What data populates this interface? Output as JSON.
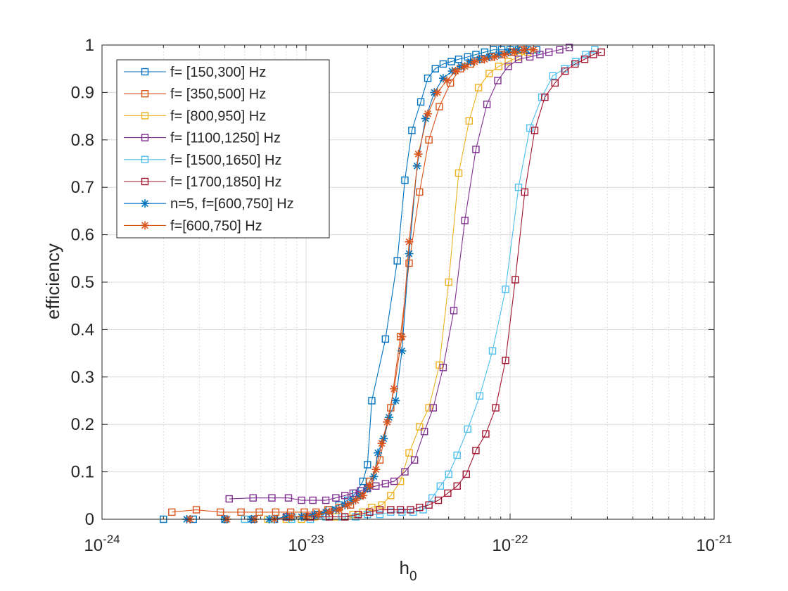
{
  "chart_data": {
    "type": "line",
    "title": "",
    "xlabel_base": "h",
    "xlabel_sub": "0",
    "ylabel": "efficiency",
    "xscale": "log",
    "xlim": [
      1e-24,
      1e-21
    ],
    "ylim": [
      0,
      1
    ],
    "grid": true,
    "legend_location": "top-left",
    "x_ticks": [
      {
        "base": "10",
        "exp": "-24",
        "value": 1e-24
      },
      {
        "base": "10",
        "exp": "-23",
        "value": 1e-23
      },
      {
        "base": "10",
        "exp": "-22",
        "value": 1e-22
      },
      {
        "base": "10",
        "exp": "-21",
        "value": 1e-21
      }
    ],
    "y_ticks": [
      {
        "label": "0",
        "value": 0
      },
      {
        "label": "0.1",
        "value": 0.1
      },
      {
        "label": "0.2",
        "value": 0.2
      },
      {
        "label": "0.3",
        "value": 0.3
      },
      {
        "label": "0.4",
        "value": 0.4
      },
      {
        "label": "0.5",
        "value": 0.5
      },
      {
        "label": "0.6",
        "value": 0.6
      },
      {
        "label": "0.7",
        "value": 0.7
      },
      {
        "label": "0.8",
        "value": 0.8
      },
      {
        "label": "0.9",
        "value": 0.9
      },
      {
        "label": "1",
        "value": 1
      }
    ],
    "series": [
      {
        "name": "f= [150,300] Hz",
        "color": "#0072BD",
        "marker": "square",
        "x": [
          2e-24,
          2.8e-24,
          4e-24,
          5.5e-24,
          7e-24,
          8.5e-24,
          1e-23,
          1.15e-23,
          1.3e-23,
          1.45e-23,
          1.6e-23,
          1.75e-23,
          1.9e-23,
          2e-23,
          2.1e-23,
          2.45e-23,
          2.8e-23,
          3.05e-23,
          3.3e-23,
          3.65e-23,
          3.95e-23,
          4.3e-23,
          4.7e-23,
          5.15e-23,
          5.6e-23,
          6.2e-23,
          6.8e-23,
          7.5e-23,
          8.3e-23,
          9.1e-23,
          1e-22,
          1.1e-22,
          1.22e-22,
          1.35e-22
        ],
        "y": [
          0.0,
          0.0,
          0.0,
          0.0,
          0.0,
          0.005,
          0.005,
          0.01,
          0.02,
          0.03,
          0.04,
          0.055,
          0.08,
          0.115,
          0.25,
          0.38,
          0.545,
          0.715,
          0.82,
          0.88,
          0.93,
          0.95,
          0.96,
          0.965,
          0.97,
          0.975,
          0.98,
          0.985,
          0.99,
          0.99,
          0.99,
          0.99,
          0.99,
          0.99
        ]
      },
      {
        "name": "f= [350,500] Hz",
        "color": "#D95319",
        "marker": "square",
        "x": [
          2.2e-24,
          2.9e-24,
          3.8e-24,
          4.8e-24,
          5.9e-24,
          7.1e-24,
          8.4e-24,
          9.8e-24,
          1.12e-23,
          1.28e-23,
          1.45e-23,
          1.65e-23,
          1.85e-23,
          2.05e-23,
          2.3e-23,
          2.6e-23,
          2.9e-23,
          3.2e-23,
          3.6e-23,
          4e-23,
          4.5e-23,
          5.1e-23,
          5.7e-23,
          6.4e-23,
          7.2e-23,
          8.1e-23,
          9.1e-23,
          1.02e-22,
          1.14e-22
        ],
        "y": [
          0.015,
          0.02,
          0.015,
          0.015,
          0.015,
          0.015,
          0.015,
          0.015,
          0.015,
          0.02,
          0.025,
          0.03,
          0.05,
          0.08,
          0.125,
          0.235,
          0.385,
          0.54,
          0.69,
          0.8,
          0.87,
          0.92,
          0.95,
          0.96,
          0.97,
          0.975,
          0.98,
          0.985,
          0.99
        ]
      },
      {
        "name": "f= [800,950] Hz",
        "color": "#EDB120",
        "marker": "square",
        "x": [
          5e-24,
          6.5e-24,
          8e-24,
          9.5e-24,
          1.1e-23,
          1.25e-23,
          1.4e-23,
          1.55e-23,
          1.7e-23,
          1.9e-23,
          2.1e-23,
          2.35e-23,
          2.6e-23,
          2.9e-23,
          3.2e-23,
          3.6e-23,
          4e-23,
          4.5e-23,
          5e-23,
          5.6e-23,
          6.3e-23,
          7e-23,
          7.9e-23,
          8.8e-23,
          9.8e-23,
          1.1e-22,
          1.22e-22
        ],
        "y": [
          0.0,
          0.0,
          0.0,
          0.0,
          0.005,
          0.005,
          0.005,
          0.005,
          0.01,
          0.015,
          0.025,
          0.03,
          0.05,
          0.08,
          0.14,
          0.195,
          0.235,
          0.325,
          0.5,
          0.73,
          0.84,
          0.91,
          0.94,
          0.955,
          0.965,
          0.975,
          0.985
        ]
      },
      {
        "name": "f= [1100,1250] Hz",
        "color": "#7E2F8E",
        "marker": "square",
        "x": [
          4.2e-24,
          5.5e-24,
          6.8e-24,
          8.2e-24,
          9.5e-24,
          1.08e-23,
          1.25e-23,
          1.4e-23,
          1.55e-23,
          1.7e-23,
          1.85e-23,
          2e-23,
          2.2e-23,
          2.45e-23,
          2.7e-23,
          3.05e-23,
          3.4e-23,
          3.8e-23,
          4.2e-23,
          4.7e-23,
          5.3e-23,
          6e-23,
          6.8e-23,
          7.7e-23,
          8.7e-23,
          9.8e-23,
          1.1e-22,
          1.25e-22,
          1.4e-22,
          1.55e-22,
          1.75e-22,
          1.95e-22
        ],
        "y": [
          0.043,
          0.045,
          0.045,
          0.045,
          0.04,
          0.04,
          0.04,
          0.045,
          0.05,
          0.055,
          0.06,
          0.065,
          0.07,
          0.075,
          0.08,
          0.1,
          0.125,
          0.185,
          0.235,
          0.32,
          0.44,
          0.63,
          0.78,
          0.875,
          0.925,
          0.955,
          0.97,
          0.975,
          0.98,
          0.985,
          0.99,
          0.995
        ]
      },
      {
        "name": "f= [1500,1650] Hz",
        "color": "#4DBEEE",
        "marker": "square",
        "x": [
          5e-24,
          6.8e-24,
          8.5e-24,
          1.05e-23,
          1.25e-23,
          1.5e-23,
          1.75e-23,
          2e-23,
          2.3e-23,
          2.6e-23,
          2.95e-23,
          3.35e-23,
          3.75e-23,
          4.15e-23,
          4.55e-23,
          5e-23,
          5.5e-23,
          6.2e-23,
          7.1e-23,
          8.2e-23,
          9.5e-23,
          1.1e-22,
          1.25e-22,
          1.43e-22,
          1.62e-22,
          1.85e-22,
          2.1e-22,
          2.35e-22,
          2.6e-22
        ],
        "y": [
          0.0,
          0.0,
          0.0,
          0.0,
          0.005,
          0.005,
          0.005,
          0.01,
          0.01,
          0.015,
          0.015,
          0.015,
          0.02,
          0.045,
          0.07,
          0.095,
          0.135,
          0.19,
          0.26,
          0.355,
          0.485,
          0.7,
          0.825,
          0.89,
          0.935,
          0.95,
          0.965,
          0.98,
          0.99
        ]
      },
      {
        "name": "f= [1700,1850] Hz",
        "color": "#A2142F",
        "marker": "square",
        "x": [
          8e-24,
          1.05e-23,
          1.3e-23,
          1.55e-23,
          1.8e-23,
          2.05e-23,
          2.3e-23,
          2.6e-23,
          2.9e-23,
          3.25e-23,
          3.6e-23,
          4e-23,
          4.45e-23,
          4.95e-23,
          5.5e-23,
          6.1e-23,
          6.8e-23,
          7.6e-23,
          8.5e-23,
          9.5e-23,
          1.06e-22,
          1.18e-22,
          1.32e-22,
          1.48e-22,
          1.66e-22,
          1.86e-22,
          2.08e-22,
          2.32e-22,
          2.56e-22,
          2.8e-22
        ],
        "y": [
          0.005,
          0.005,
          0.005,
          0.005,
          0.01,
          0.015,
          0.02,
          0.02,
          0.02,
          0.02,
          0.025,
          0.03,
          0.04,
          0.055,
          0.07,
          0.095,
          0.145,
          0.18,
          0.235,
          0.335,
          0.505,
          0.69,
          0.82,
          0.89,
          0.92,
          0.945,
          0.96,
          0.97,
          0.98,
          0.985
        ]
      },
      {
        "name": "n=5, f=[600,750] Hz",
        "color": "#0072BD",
        "marker": "asterisk",
        "x": [
          2.6e-24,
          4e-24,
          5.4e-24,
          6.6e-24,
          8e-24,
          9.5e-24,
          1.1e-23,
          1.25e-23,
          1.4e-23,
          1.55e-23,
          1.7e-23,
          1.85e-23,
          2e-23,
          2.15e-23,
          2.25e-23,
          2.4e-23,
          2.55e-23,
          2.75e-23,
          2.95e-23,
          3.2e-23,
          3.5e-23,
          3.85e-23,
          4.25e-23,
          4.7e-23,
          5.2e-23,
          5.75e-23,
          6.4e-23,
          7.1e-23,
          7.9e-23,
          8.8e-23,
          9.8e-23,
          1.09e-22,
          1.2e-22,
          1.3e-22
        ],
        "y": [
          0.0,
          0.0,
          0.0,
          0.0,
          0.005,
          0.005,
          0.01,
          0.015,
          0.02,
          0.03,
          0.04,
          0.05,
          0.065,
          0.09,
          0.14,
          0.17,
          0.215,
          0.25,
          0.355,
          0.56,
          0.745,
          0.845,
          0.9,
          0.93,
          0.945,
          0.955,
          0.965,
          0.97,
          0.975,
          0.98,
          0.985,
          0.99,
          0.99,
          0.99
        ]
      },
      {
        "name": "f=[600,750] Hz",
        "color": "#D95319",
        "marker": "asterisk",
        "x": [
          2.7e-24,
          4.1e-24,
          5.6e-24,
          7e-24,
          8.5e-24,
          1e-23,
          1.15e-23,
          1.3e-23,
          1.45e-23,
          1.6e-23,
          1.75e-23,
          1.9e-23,
          2.05e-23,
          2.2e-23,
          2.35e-23,
          2.5e-23,
          2.7e-23,
          2.95e-23,
          3.2e-23,
          3.55e-23,
          3.95e-23,
          4.4e-23,
          4.9e-23,
          5.4e-23,
          6e-23,
          6.7e-23,
          7.5e-23,
          8.4e-23,
          9.4e-23,
          1.05e-22,
          1.17e-22,
          1.3e-22
        ],
        "y": [
          0.0,
          0.0,
          0.0,
          0.0,
          0.005,
          0.005,
          0.01,
          0.015,
          0.02,
          0.03,
          0.04,
          0.05,
          0.07,
          0.105,
          0.16,
          0.205,
          0.275,
          0.385,
          0.585,
          0.77,
          0.855,
          0.9,
          0.925,
          0.945,
          0.955,
          0.965,
          0.97,
          0.975,
          0.98,
          0.985,
          0.99,
          0.99
        ]
      }
    ]
  }
}
